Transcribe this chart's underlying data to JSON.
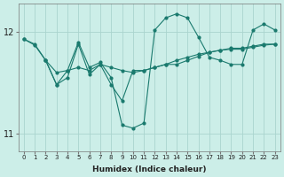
{
  "xlabel": "Humidex (Indice chaleur)",
  "background_color": "#cceee8",
  "grid_color": "#aad4ce",
  "line_color": "#1a7a6e",
  "xlim": [
    -0.5,
    23.5
  ],
  "ylim": [
    10.82,
    12.28
  ],
  "yticks": [
    11,
    12
  ],
  "xticks": [
    0,
    1,
    2,
    3,
    4,
    5,
    6,
    7,
    8,
    9,
    10,
    11,
    12,
    13,
    14,
    15,
    16,
    17,
    18,
    19,
    20,
    21,
    22,
    23
  ],
  "series": [
    {
      "x": [
        0,
        1,
        2,
        3,
        4,
        5,
        6,
        7,
        8,
        9,
        10,
        11,
        12,
        13,
        14,
        15,
        16,
        17,
        18,
        19,
        20,
        21,
        22,
        23
      ],
      "y": [
        11.93,
        11.87,
        11.72,
        11.6,
        11.62,
        11.65,
        11.62,
        11.68,
        11.65,
        11.62,
        11.6,
        11.62,
        11.65,
        11.68,
        11.72,
        11.75,
        11.78,
        11.8,
        11.82,
        11.83,
        11.83,
        11.85,
        11.87,
        11.88
      ]
    },
    {
      "x": [
        0,
        1,
        2,
        3,
        4,
        5,
        6,
        7,
        8,
        9,
        10,
        11,
        12,
        13,
        14,
        15,
        16,
        17,
        18,
        19,
        20,
        21,
        22,
        23
      ],
      "y": [
        11.93,
        11.88,
        11.72,
        11.48,
        11.62,
        11.9,
        11.65,
        11.7,
        11.55,
        11.08,
        11.05,
        11.1,
        12.02,
        12.14,
        12.18,
        12.14,
        11.95,
        11.75,
        11.72,
        11.68,
        11.68,
        12.02,
        12.08,
        12.02
      ]
    },
    {
      "x": [
        2,
        3,
        4,
        5,
        6,
        7,
        8,
        9,
        10,
        11,
        12,
        13,
        14,
        15,
        16,
        17,
        18,
        19,
        20,
        21,
        22,
        23
      ],
      "y": [
        11.72,
        11.48,
        11.55,
        11.88,
        11.58,
        11.68,
        11.48,
        11.32,
        11.62,
        11.62,
        11.65,
        11.68,
        11.68,
        11.72,
        11.76,
        11.8,
        11.82,
        11.84,
        11.84,
        11.86,
        11.88,
        11.88
      ]
    }
  ]
}
